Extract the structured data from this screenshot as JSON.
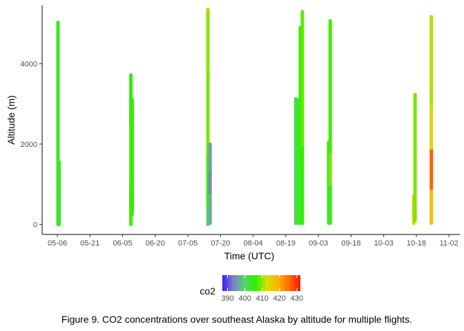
{
  "chart_data": {
    "type": "scatter",
    "title": "",
    "xlabel": "Time (UTC)",
    "ylabel": "Altitude (m)",
    "x_tick_labels": [
      "05-06",
      "05-21",
      "06-05",
      "06-20",
      "07-05",
      "07-20",
      "08-04",
      "08-19",
      "09-03",
      "09-18",
      "10-03",
      "10-18",
      "11-02"
    ],
    "x_range_days": [
      -7,
      185
    ],
    "y_ticks": [
      0,
      2000,
      4000
    ],
    "ylim": [
      -250,
      5450
    ],
    "grid": false,
    "legend": {
      "title": "co2",
      "placement": "bottom",
      "range": [
        387,
        432
      ],
      "ticks": [
        390,
        400,
        410,
        420,
        430
      ],
      "gradient_colors": [
        "#3a1ef5",
        "#7f80c8",
        "#4cd96a",
        "#33ee00",
        "#d6df00",
        "#ffb100",
        "#ff6a00",
        "#ff1000"
      ]
    },
    "series": [
      {
        "flight_day": 0.3,
        "segments": [
          [
            0,
            1000,
            403
          ],
          [
            1000,
            2400,
            404
          ],
          [
            2400,
            4000,
            404
          ],
          [
            4000,
            5030,
            404
          ]
        ]
      },
      {
        "flight_day": 0.8,
        "segments": [
          [
            0,
            1550,
            404
          ]
        ]
      },
      {
        "flight_day": 33.8,
        "segments": [
          [
            0,
            1100,
            407
          ],
          [
            1100,
            2500,
            408
          ],
          [
            2500,
            3720,
            406
          ]
        ]
      },
      {
        "flight_day": 34.4,
        "segments": [
          [
            250,
            3100,
            406
          ]
        ]
      },
      {
        "flight_day": 69.2,
        "segments": [
          [
            0,
            500,
            399
          ],
          [
            500,
            1800,
            407
          ],
          [
            1800,
            3800,
            409
          ],
          [
            3800,
            5350,
            410
          ]
        ]
      },
      {
        "flight_day": 70.2,
        "segments": [
          [
            30,
            800,
            397
          ],
          [
            800,
            1350,
            394
          ],
          [
            1350,
            2000,
            396
          ]
        ]
      },
      {
        "flight_day": 109.6,
        "segments": [
          [
            30,
            1500,
            399
          ],
          [
            1500,
            3130,
            401
          ]
        ]
      },
      {
        "flight_day": 110.6,
        "segments": [
          [
            30,
            3100,
            404
          ]
        ]
      },
      {
        "flight_day": 111.7,
        "segments": [
          [
            30,
            3100,
            405
          ],
          [
            3100,
            4900,
            406
          ]
        ]
      },
      {
        "flight_day": 112.6,
        "segments": [
          [
            30,
            2000,
            406
          ],
          [
            2000,
            5300,
            408
          ]
        ]
      },
      {
        "flight_day": 124.7,
        "segments": [
          [
            30,
            1000,
            403
          ],
          [
            1000,
            2050,
            405
          ]
        ]
      },
      {
        "flight_day": 125.4,
        "segments": [
          [
            30,
            1000,
            405
          ],
          [
            1000,
            1800,
            409
          ],
          [
            1800,
            5070,
            407
          ]
        ]
      },
      {
        "flight_day": 163.8,
        "segments": [
          [
            30,
            700,
            416
          ]
        ]
      },
      {
        "flight_day": 164.4,
        "segments": [
          [
            100,
            3230,
            409
          ]
        ]
      },
      {
        "flight_day": 171.9,
        "segments": [
          [
            30,
            900,
            417
          ],
          [
            900,
            1900,
            426
          ],
          [
            1900,
            3000,
            414
          ],
          [
            3000,
            5170,
            411
          ]
        ]
      }
    ]
  },
  "caption": "Figure 9.  CO2 concentrations over southeast Alaska by altitude for multiple flights."
}
